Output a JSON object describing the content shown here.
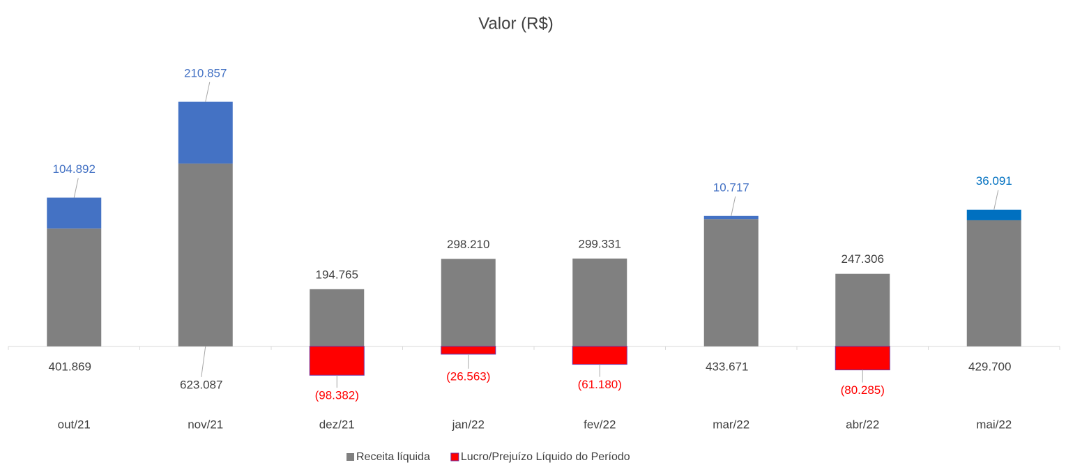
{
  "chart_data": {
    "type": "stacked_bar",
    "title": "Valor (R$)",
    "categories": [
      "out/21",
      "nov/21",
      "dez/21",
      "jan/22",
      "fev/22",
      "mar/22",
      "abr/22",
      "mai/22"
    ],
    "ylim": [
      -200000,
      900000
    ],
    "legend": "bottom",
    "series": [
      {
        "name": "Receita líquida",
        "color": "#808080",
        "values": [
          401869,
          623087,
          194765,
          298210,
          299331,
          433671,
          247306,
          429700
        ],
        "value_labels": [
          "401.869",
          "623.087",
          "194.765",
          "298.210",
          "299.331",
          "433.671",
          "247.306",
          "429.700"
        ]
      },
      {
        "name": "Lucro/Prejuízo Líquido do Período",
        "color": "#ff0000",
        "colors": [
          "#4472c4",
          "#4472c4",
          "#ff0000",
          "#ff0000",
          "#ff0000",
          "#4472c4",
          "#ff0000",
          "#0070c0"
        ],
        "values": [
          104892,
          210857,
          -98382,
          -26563,
          -61180,
          10717,
          -80285,
          36091
        ],
        "value_labels": [
          "104.892",
          "210.857",
          "(98.382)",
          "(26.563)",
          "(61.180)",
          "10.717",
          "(80.285)",
          "36.091"
        ]
      }
    ]
  }
}
